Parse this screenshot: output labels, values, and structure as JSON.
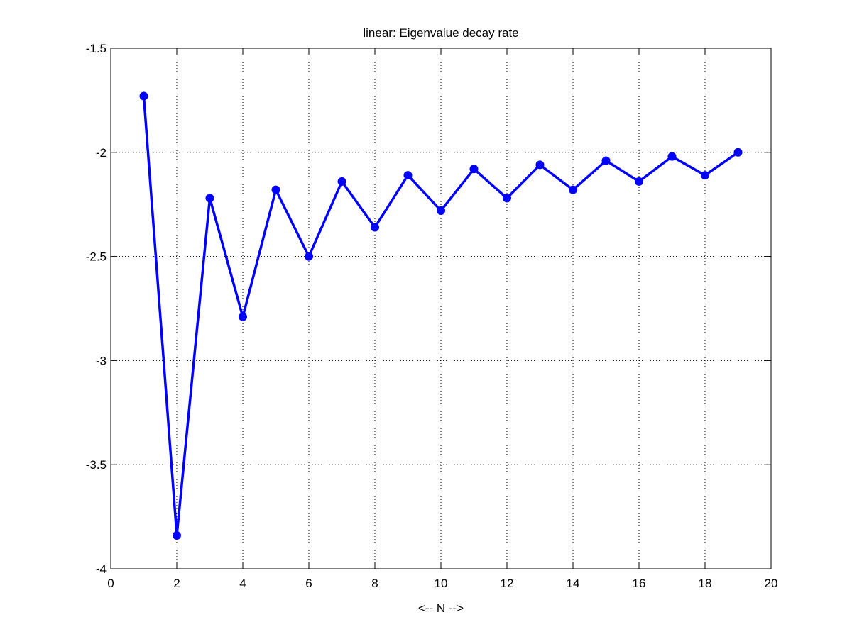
{
  "chart_data": {
    "type": "line",
    "title": "linear: Eigenvalue decay rate",
    "xlabel": "<-- N -->",
    "ylabel": "",
    "xlim": [
      0,
      20
    ],
    "ylim": [
      -4,
      -1.5
    ],
    "xticks": [
      0,
      2,
      4,
      6,
      8,
      10,
      12,
      14,
      16,
      18,
      20
    ],
    "yticks": [
      -4,
      -3.5,
      -3,
      -2.5,
      -2,
      -1.5
    ],
    "xtick_labels": [
      "0",
      "2",
      "4",
      "6",
      "8",
      "10",
      "12",
      "14",
      "16",
      "18",
      "20"
    ],
    "ytick_labels": [
      "-4",
      "-3.5",
      "-3",
      "-2.5",
      "-2",
      "-1.5"
    ],
    "grid": true,
    "series": [
      {
        "color": "#0000ff",
        "marker": "circle",
        "x": [
          1,
          2,
          3,
          4,
          5,
          6,
          7,
          8,
          9,
          10,
          11,
          12,
          13,
          14,
          15,
          16,
          17,
          18,
          19
        ],
        "y": [
          -1.73,
          -3.84,
          -2.22,
          -2.79,
          -2.18,
          -2.5,
          -2.14,
          -2.36,
          -2.11,
          -2.28,
          -2.08,
          -2.22,
          -2.06,
          -2.18,
          -2.04,
          -2.14,
          -2.02,
          -2.11,
          -2.0
        ]
      }
    ]
  }
}
